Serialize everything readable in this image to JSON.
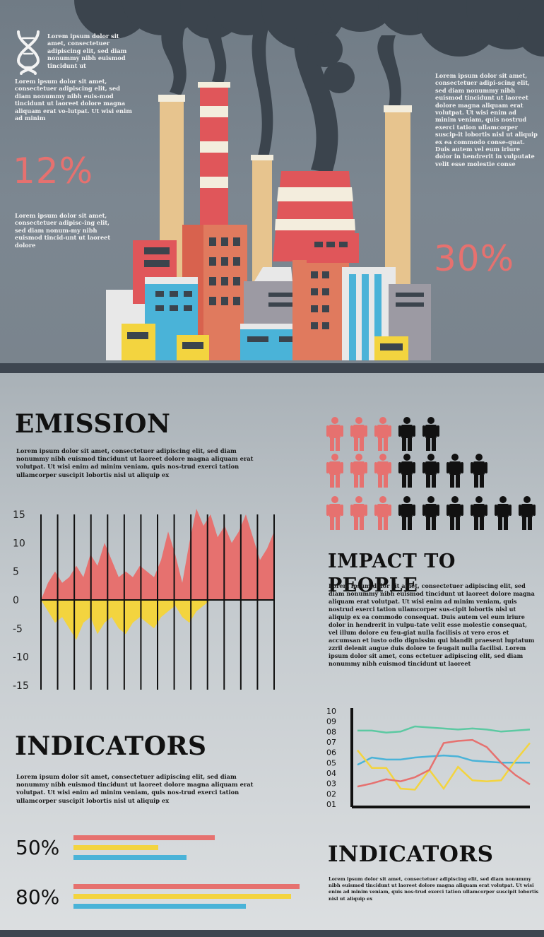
{
  "colors": {
    "accent_red": "#e6716f",
    "yellow": "#f3d43f",
    "blue": "#4ab3d8",
    "teal": "#5cc9a2",
    "dark": "#111111",
    "slate": "#3e4650"
  },
  "top": {
    "left_title": "Lorem ipsum dolor sit amet, consectetuer adipiscing elit, sed diam nonummy nibh euismod tincidunt ut",
    "left_para": "Lorem ipsum dolor sit amet, consectetuer adipiscing elit, sed diam nonummy nibh euis-mod tincidunt ut laoreet dolore magna aliquam erat vo-lutpat. Ut wisi enim ad minim",
    "left_pct": "12%",
    "left_para2": "Lorem ipsum dolor sit amet, consectetuer adipisc-ing elit, sed diam nonum-my nibh euismod tincid-unt ut laoreet dolore",
    "right_para": "Lorem ipsum dolor sit amet, consectetuer adipi-scing elit, sed diam nonummy nibh euismod tincidunt ut laoreet dolore magna aliquam erat volutpat. Ut wisi enim ad minim veniam, quis nostrud exerci tation ullamcorper suscip-it lobortis nisl ut aliquip ex ea commodo conse-quat. Duis autem vel eum iriure dolor in hendrerit in vulputate velit esse molestie conse",
    "right_pct": "30%",
    "icons": [
      "dna-icon",
      "factory-illustration"
    ]
  },
  "emission": {
    "title": "EMISSION",
    "text": "Lorem ipsum dolor sit amet, consectetuer adipiscing elit, sed diam nonummy nibh euismod tincidunt ut laoreet dolore magna aliquam erat volutpat. Ut wisi enim ad minim veniam, quis nos-trud exerci tation ullamcorper suscipit lobortis nisl ut aliquip ex"
  },
  "people": {
    "title": "IMPACT TO PEOPLE",
    "rows": [
      {
        "red": 3,
        "black": 2
      },
      {
        "red": 3,
        "black": 4
      },
      {
        "red": 3,
        "black": 6
      }
    ],
    "text": "Lorem ipsum dolor sit amet, consectetuer adipiscing elit, sed diam nonummy nibh euismod tincidunt ut laoreet dolore magna aliquam erat volutpat. Ut wisi enim ad minim veniam, quis nostrud exerci tation ullamcorper sus-cipit lobortis nisl ut aliquip ex ea commodo consequat. Duis autem vel eum iriure dolor in hendrerit in vulpu-tate velit esse molestie consequat, vel illum dolore eu feu-giat nulla facilisis at vero eros et accumsan et iusto odio dignissim qui blandit praesent luptatum zzril delenit augue duis dolore te feugait nulla facilisi. Lorem ipsum dolor sit amet, cons ectetuer adipiscing elit, sed diam nonummy nibh euismod tincidunt ut laoreet"
  },
  "indicators_left": {
    "title": "INDICATORS",
    "text": "Lorem ipsum dolor sit amet, consectetuer adipiscing elit, sed diam nonummy nibh euismod tincidunt ut laoreet dolore magna aliquam erat volutpat. Ut wisi enim ad minim veniam, quis nos-trud exerci tation ullamcorper suscipit lobortis nisl ut aliquip ex",
    "bars": [
      {
        "label": "50%",
        "values": [
          0.5,
          0.3,
          0.4
        ]
      },
      {
        "label": "80%",
        "values": [
          0.8,
          0.77,
          0.61
        ]
      }
    ]
  },
  "indicators_right": {
    "title": "INDICATORS",
    "text": "Lorem ipsum dolor sit amet, consectetuer adipiscing elit, sed diam nonummy nibh euismod tincidunt ut laoreet dolore magna aliquam erat volutpat. Ut wisi enim ad minim veniam, quis nos-trud exerci tation ullamcorper suscipit lobortis nisl ut aliquip ex"
  },
  "chart_data": [
    {
      "type": "area",
      "yticks": [
        "15",
        "10",
        "5",
        "0",
        "-5",
        "-10",
        "-15"
      ],
      "ylim": [
        -15,
        15
      ],
      "grid": "vertical",
      "series": [
        {
          "values": [
            0,
            3,
            5,
            3,
            4,
            6,
            4,
            8,
            6,
            10,
            7,
            4,
            5,
            4,
            6,
            5,
            4,
            7,
            12,
            8,
            3,
            10,
            16,
            13,
            15,
            11,
            13,
            10,
            12,
            15,
            11,
            7,
            9,
            12
          ]
        },
        {
          "values": [
            0,
            -2,
            -4,
            -3,
            -5,
            -7,
            -4,
            -3,
            -6,
            -4,
            -3,
            -5,
            -6,
            -4,
            -3,
            -4,
            -5,
            -3,
            -2,
            -1,
            -3,
            -4,
            -2,
            -1,
            0,
            0,
            0,
            0,
            0,
            0,
            0,
            0,
            0,
            0
          ]
        }
      ]
    },
    {
      "type": "line",
      "yticks": [
        "10",
        "09",
        "08",
        "07",
        "06",
        "05",
        "04",
        "03",
        "02",
        "01"
      ],
      "ylim": [
        1,
        10
      ],
      "x": [
        0,
        1,
        2,
        3,
        4,
        5,
        6,
        7,
        8,
        9,
        10,
        11,
        12
      ],
      "series": [
        {
          "color": "#5cc9a2",
          "values": [
            8.1,
            8.1,
            7.9,
            8.0,
            8.5,
            8.4,
            8.3,
            8.2,
            8.3,
            8.2,
            8.0,
            8.1,
            8.2
          ]
        },
        {
          "color": "#4ab3d8",
          "values": [
            4.8,
            5.5,
            5.3,
            5.3,
            5.5,
            5.6,
            5.7,
            5.6,
            5.2,
            5.1,
            5.0,
            5.0,
            5.0
          ]
        },
        {
          "color": "#f3d43f",
          "values": [
            6.2,
            4.5,
            4.5,
            2.5,
            2.4,
            4.3,
            2.5,
            4.6,
            3.3,
            3.2,
            3.3,
            5.2,
            6.9
          ]
        },
        {
          "color": "#e6716f",
          "values": [
            2.7,
            3.0,
            3.4,
            3.2,
            3.6,
            4.3,
            6.9,
            7.1,
            7.2,
            6.5,
            5.0,
            3.8,
            2.9
          ]
        }
      ]
    }
  ]
}
